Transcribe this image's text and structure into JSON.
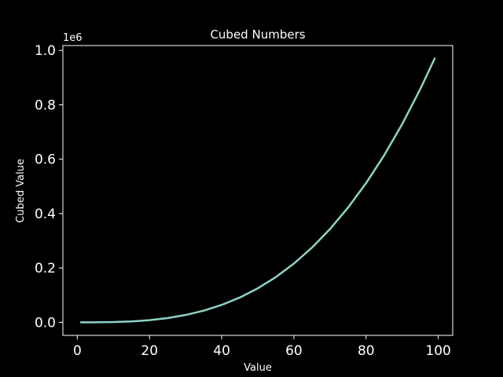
{
  "colors": {
    "background": "#000000",
    "foreground": "#ffffff",
    "line": "#8dd3c7"
  },
  "chart_data": {
    "type": "line",
    "title": "Cubed Numbers",
    "xlabel": "Value",
    "ylabel": "Cubed Value",
    "y_offset_label": "1e6",
    "xlim": [
      -4,
      104
    ],
    "ylim": [
      -0.048,
      1.018
    ],
    "x_ticks": [
      0,
      20,
      40,
      60,
      80,
      100
    ],
    "x_tick_labels": [
      "0",
      "20",
      "40",
      "60",
      "80",
      "100"
    ],
    "y_ticks": [
      0.0,
      0.2,
      0.4,
      0.6,
      0.8,
      1.0
    ],
    "y_tick_labels": [
      "0.0",
      "0.2",
      "0.4",
      "0.6",
      "0.8",
      "1.0"
    ],
    "grid": false,
    "series": [
      {
        "x": [
          1,
          5,
          10,
          15,
          20,
          25,
          30,
          35,
          40,
          45,
          50,
          55,
          60,
          65,
          70,
          75,
          80,
          85,
          90,
          95,
          99
        ],
        "values": [
          1e-06,
          0.000125,
          0.001,
          0.003375,
          0.008,
          0.015625,
          0.027,
          0.042875,
          0.064,
          0.091125,
          0.125,
          0.166375,
          0.216,
          0.274625,
          0.343,
          0.421875,
          0.512,
          0.614125,
          0.729,
          0.857375,
          0.970299
        ]
      }
    ]
  }
}
